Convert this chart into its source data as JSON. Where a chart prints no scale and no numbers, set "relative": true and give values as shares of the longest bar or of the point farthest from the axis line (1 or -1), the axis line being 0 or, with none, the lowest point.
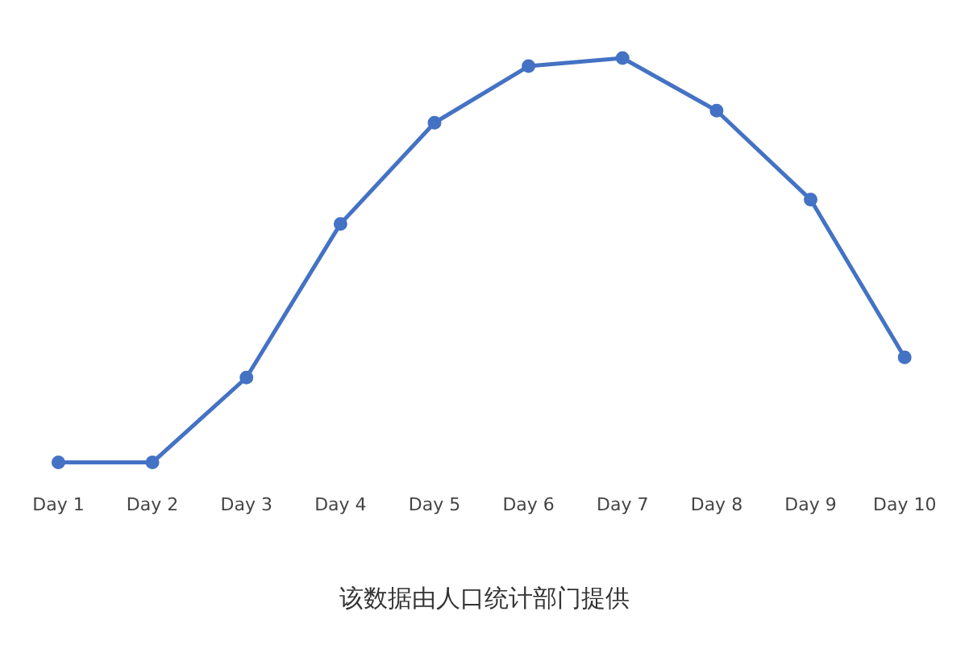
{
  "chart_data": {
    "type": "line",
    "relative": true,
    "categories": [
      "Day 1",
      "Day 2",
      "Day 3",
      "Day 4",
      "Day 5",
      "Day 6",
      "Day 7",
      "Day 8",
      "Day 9",
      "Day 10"
    ],
    "series": [
      {
        "color": "#4472c4",
        "values": [
          0,
          0,
          0.21,
          0.59,
          0.84,
          0.98,
          1,
          0.87,
          0.65,
          0.26
        ]
      }
    ],
    "marker": "circle",
    "legend": false,
    "grid": false,
    "annotations": [
      "该数据由人口统计部门提供"
    ]
  }
}
